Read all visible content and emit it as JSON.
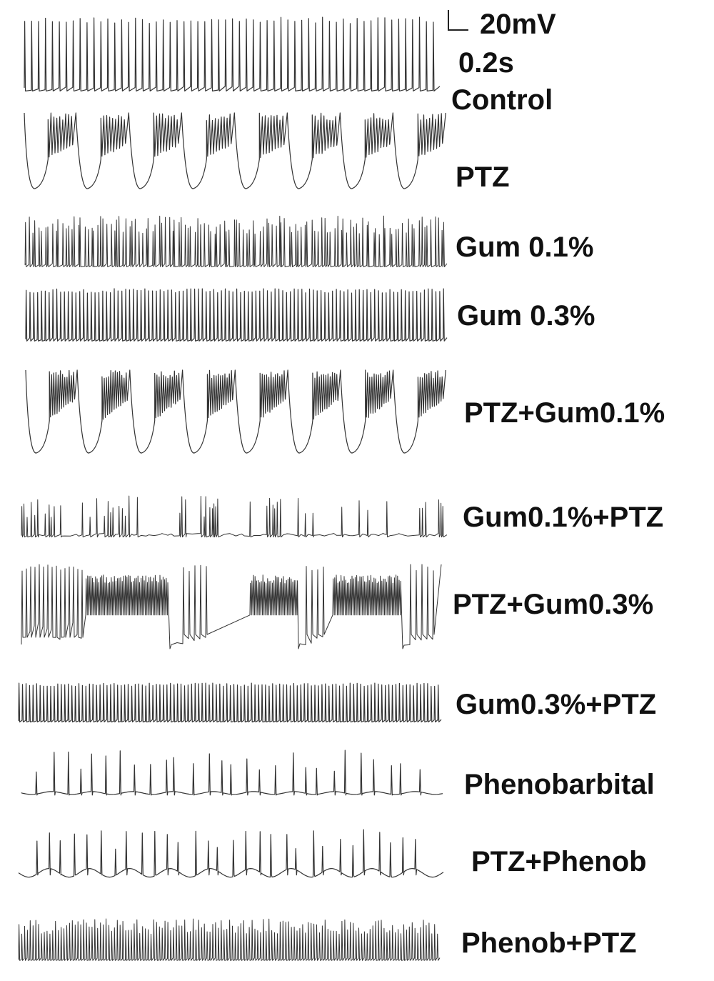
{
  "chart_data": {
    "type": "line",
    "title": "",
    "xlabel": "",
    "ylabel": "",
    "grid": false,
    "legend": "none",
    "scale_bar": {
      "voltage": "20mV",
      "time": "0.2s"
    },
    "colors": {
      "trace": "#333333",
      "text": "#111111",
      "background": "#ffffff"
    },
    "series": [
      {
        "name": "Control",
        "pattern": "regular",
        "spikes": 60,
        "amplitude_mV": 55
      },
      {
        "name": "PTZ",
        "pattern": "bursting",
        "bursts": 8,
        "spikes_per_burst": 9,
        "amplitude_mV": 55,
        "afterhyperpolarization": "deep"
      },
      {
        "name": "Gum 0.1%",
        "pattern": "dense-irregular",
        "spikes": 130,
        "amplitude_mV": 40
      },
      {
        "name": "Gum 0.3%",
        "pattern": "regular",
        "spikes": 110,
        "amplitude_mV": 40
      },
      {
        "name": "PTZ+Gum0.1%",
        "pattern": "bursting",
        "bursts": 8,
        "spikes_per_burst": 12,
        "amplitude_mV": 55,
        "afterhyperpolarization": "deep"
      },
      {
        "name": "Gum0.1%+PTZ",
        "pattern": "clustered",
        "spikes": 90,
        "amplitude_mV": 30
      },
      {
        "name": "PTZ+Gum0.3%",
        "pattern": "plateau-bursting",
        "bursts": 3,
        "amplitude_mV": 60
      },
      {
        "name": "Gum0.3%+PTZ",
        "pattern": "regular",
        "spikes": 120,
        "amplitude_mV": 30
      },
      {
        "name": "Phenobarbital",
        "pattern": "sparse",
        "spikes": 28,
        "amplitude_mV": 35
      },
      {
        "name": "PTZ+Phenob",
        "pattern": "sparse-oscillating",
        "spikes": 30,
        "amplitude_mV": 30
      },
      {
        "name": "Phenob+PTZ",
        "pattern": "dense-regular",
        "spikes": 150,
        "amplitude_mV": 35
      }
    ]
  }
}
